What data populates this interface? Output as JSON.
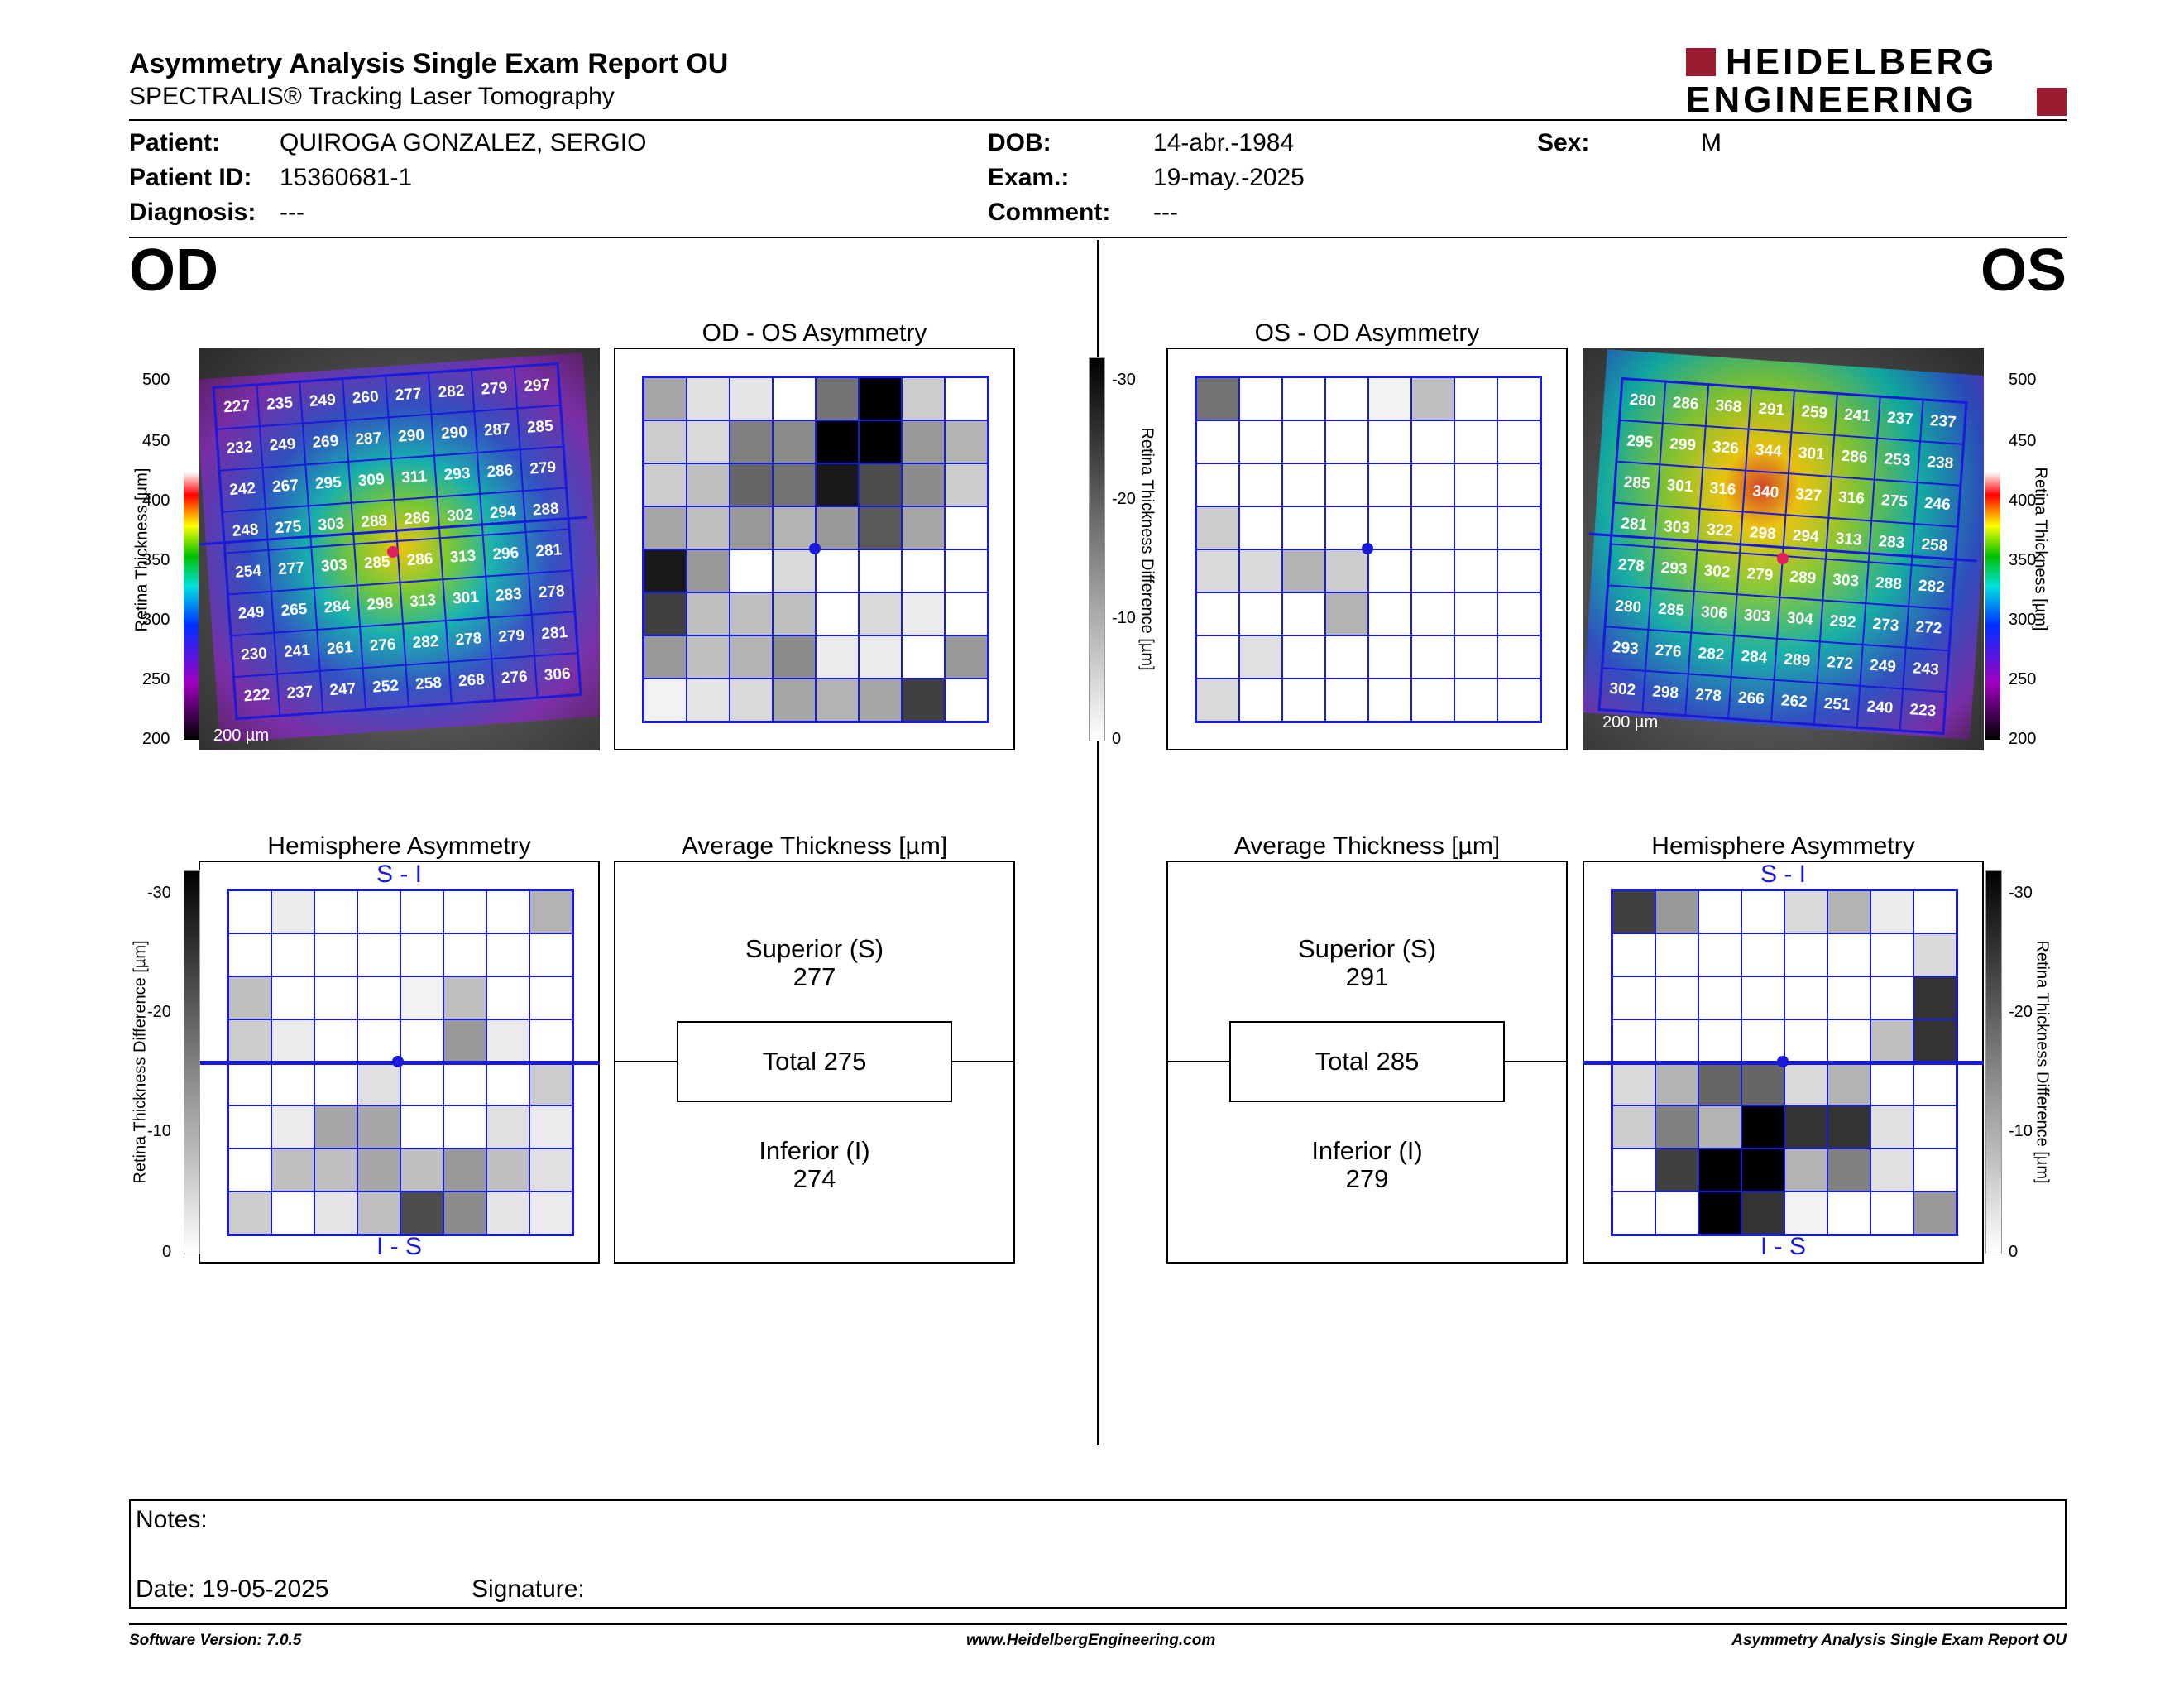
{
  "header": {
    "title": "Asymmetry Analysis Single Exam Report OU",
    "subtitle": "SPECTRALIS® Tracking Laser Tomography",
    "logo_line1": "HEIDELBERG",
    "logo_line2": "ENGINEERING",
    "brand_color": "#9b1b30"
  },
  "patient": {
    "patient_label": "Patient:",
    "patient_value": "QUIROGA GONZALEZ, SERGIO",
    "id_label": "Patient ID:",
    "id_value": "15360681-1",
    "diagnosis_label": "Diagnosis:",
    "diagnosis_value": "---",
    "dob_label": "DOB:",
    "dob_value": "14-abr.-1984",
    "exam_label": "Exam.:",
    "exam_value": "19-may.-2025",
    "comment_label": "Comment:",
    "comment_value": "---",
    "sex_label": "Sex:",
    "sex_value": "M"
  },
  "od": {
    "eye_label": "OD",
    "asym_title": "OD - OS Asymmetry",
    "hemi_title": "Hemisphere Asymmetry",
    "hemi_top": "S - I",
    "hemi_bottom": "I - S",
    "avg_title": "Average Thickness [µm]",
    "sup_label": "Superior (S)",
    "sup_value": "277",
    "total_label": "Total 275",
    "inf_label": "Inferior (I)",
    "inf_value": "274",
    "scale_label": "200 µm",
    "thickness": [
      [
        227,
        235,
        249,
        260,
        277,
        282,
        279,
        297
      ],
      [
        232,
        249,
        269,
        287,
        290,
        290,
        287,
        285
      ],
      [
        242,
        267,
        295,
        309,
        311,
        293,
        286,
        279
      ],
      [
        248,
        275,
        303,
        288,
        286,
        302,
        294,
        288
      ],
      [
        254,
        277,
        303,
        285,
        286,
        313,
        296,
        281
      ],
      [
        249,
        265,
        284,
        298,
        313,
        301,
        283,
        278
      ],
      [
        230,
        241,
        261,
        276,
        282,
        278,
        279,
        281
      ],
      [
        222,
        237,
        247,
        252,
        258,
        268,
        276,
        306
      ]
    ],
    "asym_grid": [
      [
        0.35,
        0.12,
        0.1,
        0.0,
        0.55,
        1.0,
        0.2,
        0.0
      ],
      [
        0.2,
        0.15,
        0.5,
        0.45,
        1.0,
        1.0,
        0.4,
        0.3
      ],
      [
        0.2,
        0.25,
        0.6,
        0.55,
        0.9,
        0.7,
        0.45,
        0.2
      ],
      [
        0.35,
        0.25,
        0.4,
        0.3,
        0.4,
        0.65,
        0.35,
        0.0
      ],
      [
        0.9,
        0.4,
        0.0,
        0.15,
        0.0,
        0.0,
        0.0,
        0.0
      ],
      [
        0.75,
        0.25,
        0.25,
        0.25,
        0.0,
        0.15,
        0.08,
        0.0
      ],
      [
        0.4,
        0.25,
        0.3,
        0.45,
        0.08,
        0.08,
        0.0,
        0.4
      ],
      [
        0.05,
        0.1,
        0.15,
        0.35,
        0.3,
        0.35,
        0.75,
        0.0
      ]
    ],
    "hemi_grid": [
      [
        0.0,
        0.08,
        0.0,
        0.0,
        0.0,
        0.0,
        0.0,
        0.3
      ],
      [
        0.0,
        0.0,
        0.0,
        0.0,
        0.0,
        0.0,
        0.0,
        0.0
      ],
      [
        0.25,
        0.0,
        0.0,
        0.0,
        0.05,
        0.25,
        0.0,
        0.0
      ],
      [
        0.2,
        0.08,
        0.0,
        0.0,
        0.0,
        0.4,
        0.08,
        0.0
      ],
      [
        0.0,
        0.0,
        0.0,
        0.12,
        0.0,
        0.0,
        0.0,
        0.2
      ],
      [
        0.0,
        0.08,
        0.35,
        0.35,
        0.0,
        0.0,
        0.12,
        0.08
      ],
      [
        0.0,
        0.25,
        0.25,
        0.35,
        0.25,
        0.4,
        0.25,
        0.12
      ],
      [
        0.2,
        0.0,
        0.1,
        0.25,
        0.7,
        0.45,
        0.1,
        0.08
      ]
    ]
  },
  "os": {
    "eye_label": "OS",
    "asym_title": "OS - OD Asymmetry",
    "hemi_title": "Hemisphere Asymmetry",
    "hemi_top": "S - I",
    "hemi_bottom": "I - S",
    "avg_title": "Average Thickness [µm]",
    "sup_label": "Superior (S)",
    "sup_value": "291",
    "total_label": "Total 285",
    "inf_label": "Inferior (I)",
    "inf_value": "279",
    "scale_label": "200 µm",
    "thickness": [
      [
        280,
        286,
        368,
        291,
        259,
        241,
        237,
        237
      ],
      [
        295,
        299,
        326,
        344,
        301,
        286,
        253,
        238
      ],
      [
        285,
        301,
        316,
        340,
        327,
        316,
        275,
        246
      ],
      [
        281,
        303,
        322,
        298,
        294,
        313,
        283,
        258
      ],
      [
        278,
        293,
        302,
        279,
        289,
        303,
        288,
        282
      ],
      [
        280,
        285,
        306,
        303,
        304,
        292,
        273,
        272
      ],
      [
        293,
        276,
        282,
        284,
        289,
        272,
        249,
        243
      ],
      [
        302,
        298,
        278,
        266,
        262,
        251,
        240,
        223
      ]
    ],
    "asym_grid": [
      [
        0.55,
        0.0,
        0.0,
        0.0,
        0.05,
        0.25,
        0.0,
        0.0
      ],
      [
        0.0,
        0.0,
        0.0,
        0.0,
        0.0,
        0.0,
        0.0,
        0.0
      ],
      [
        0.0,
        0.0,
        0.0,
        0.0,
        0.0,
        0.0,
        0.0,
        0.0
      ],
      [
        0.2,
        0.0,
        0.0,
        0.0,
        0.0,
        0.0,
        0.0,
        0.0
      ],
      [
        0.15,
        0.15,
        0.3,
        0.2,
        0.0,
        0.0,
        0.0,
        0.0
      ],
      [
        0.0,
        0.0,
        0.0,
        0.3,
        0.0,
        0.0,
        0.0,
        0.0
      ],
      [
        0.0,
        0.12,
        0.0,
        0.0,
        0.0,
        0.0,
        0.0,
        0.0
      ],
      [
        0.15,
        0.0,
        0.0,
        0.0,
        0.0,
        0.0,
        0.0,
        0.0
      ]
    ],
    "hemi_grid": [
      [
        0.75,
        0.4,
        0.0,
        0.0,
        0.15,
        0.3,
        0.08,
        0.0
      ],
      [
        0.0,
        0.0,
        0.0,
        0.0,
        0.0,
        0.0,
        0.0,
        0.15
      ],
      [
        0.0,
        0.0,
        0.0,
        0.0,
        0.0,
        0.0,
        0.0,
        0.8
      ],
      [
        0.0,
        0.0,
        0.0,
        0.0,
        0.0,
        0.0,
        0.25,
        0.8
      ],
      [
        0.15,
        0.3,
        0.6,
        0.6,
        0.15,
        0.3,
        0.0,
        0.0
      ],
      [
        0.2,
        0.5,
        0.3,
        1.0,
        0.8,
        0.8,
        0.12,
        0.0
      ],
      [
        0.0,
        0.75,
        1.0,
        1.0,
        0.3,
        0.5,
        0.12,
        0.0
      ],
      [
        0.0,
        0.0,
        1.0,
        0.8,
        0.05,
        0.0,
        0.0,
        0.4
      ]
    ]
  },
  "thickness_scale": {
    "label": "Retina Thickness [µm]",
    "ticks": [
      "500",
      "450",
      "400",
      "350",
      "300",
      "250",
      "200"
    ]
  },
  "diff_scale": {
    "label": "Retina Thickness Difference [µm]",
    "ticks": [
      "-30",
      "-20",
      "-10",
      "0"
    ]
  },
  "notes": {
    "notes_label": "Notes:",
    "date_label": "Date: 19-05-2025",
    "signature_label": "Signature:"
  },
  "footer": {
    "software": "Software Version: 7.0.5",
    "website": "www.HeidelbergEngineering.com",
    "report": "Asymmetry Analysis Single Exam Report OU"
  }
}
